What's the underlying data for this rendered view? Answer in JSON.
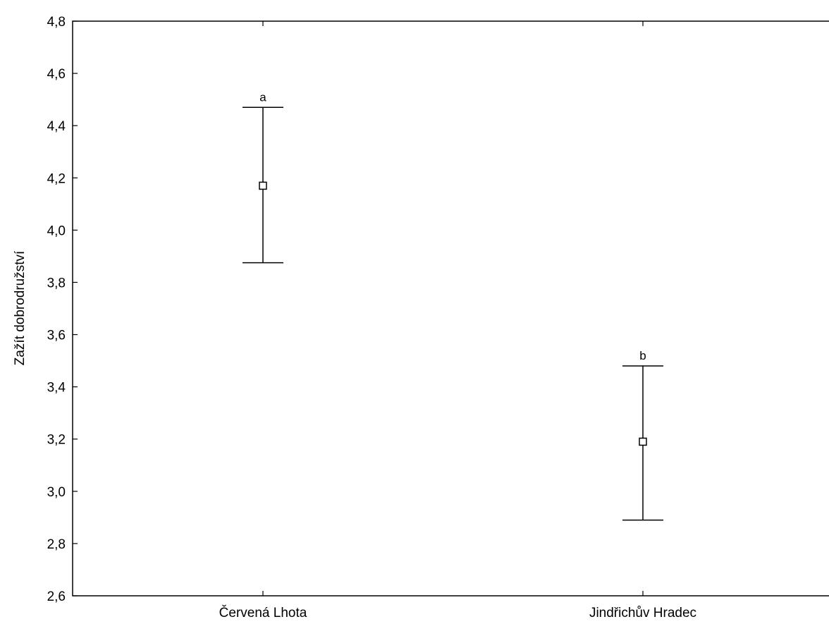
{
  "chart_data": {
    "type": "scatter",
    "categories": [
      "Červená Lhota",
      "Jindřichův Hradec"
    ],
    "series": [
      {
        "means": [
          4.17,
          3.19
        ],
        "ci_lower": [
          3.875,
          2.89
        ],
        "ci_upper": [
          4.47,
          3.48
        ],
        "letters": [
          "a",
          "b"
        ]
      }
    ],
    "ylabel": "Zažít dobrodružství",
    "xlabel": "",
    "ylim": [
      2.6,
      4.8
    ],
    "yticks": [
      2.6,
      2.8,
      3.0,
      3.2,
      3.4,
      3.6,
      3.8,
      4.0,
      4.2,
      4.4,
      4.6,
      4.8
    ],
    "ytick_labels": [
      "2,6",
      "2,8",
      "3,0",
      "3,2",
      "3,4",
      "3,6",
      "3,8",
      "4,0",
      "4,2",
      "4,4",
      "4,6",
      "4,8"
    ],
    "grid": false,
    "colors": {
      "line": "#000000",
      "marker_fill": "#ffffff",
      "background": "#ffffff"
    }
  }
}
